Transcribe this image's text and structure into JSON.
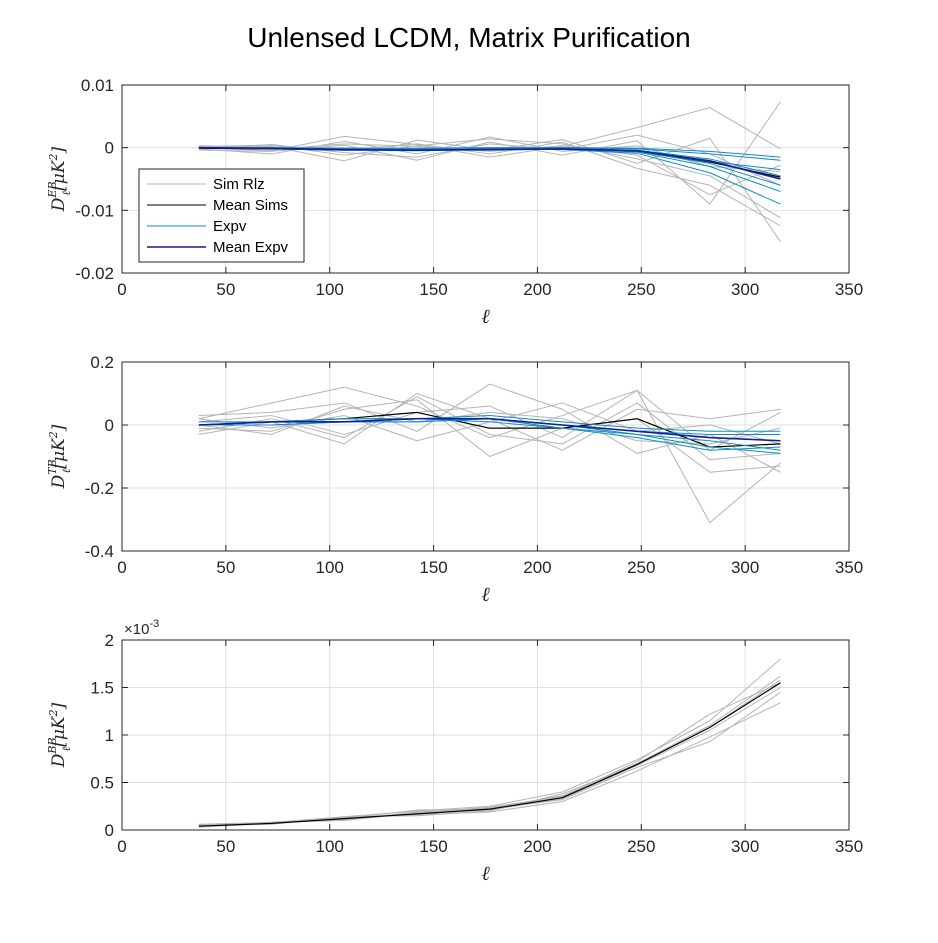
{
  "figure": {
    "title": "Unlensed LCDM, Matrix Purification"
  },
  "chart_data": [
    {
      "type": "line",
      "id": "eb",
      "ylabel": "D_ℓ^{EB}[μK²]",
      "ylabel_parts": {
        "base": "D",
        "sub": "ℓ",
        "sup": "EB",
        "tail": "[μK",
        "tail_sup": "2",
        "tail_end": "]"
      },
      "xlabel": "ℓ",
      "xlim": [
        0,
        350
      ],
      "ylim": [
        -0.02,
        0.01
      ],
      "xticks": [
        0,
        50,
        100,
        150,
        200,
        250,
        300,
        350
      ],
      "xtick_labels": [
        "0",
        "50",
        "100",
        "150",
        "200",
        "250",
        "300",
        "350"
      ],
      "yticks": [
        -0.02,
        -0.01,
        0,
        0.01
      ],
      "ytick_labels": [
        "-0.02",
        "-0.01",
        "0",
        "0.01"
      ],
      "grid": true,
      "legend": {
        "placement": "middle-left",
        "entries": [
          {
            "label": "Sim Rlz",
            "color": "#b4b4b4"
          },
          {
            "label": "Mean Sims",
            "color": "#000000"
          },
          {
            "label": "Expv",
            "color": "#0e8fbf"
          },
          {
            "label": "Mean Expv",
            "color": "#1a1aa0"
          }
        ]
      },
      "x": [
        37,
        72,
        107,
        142,
        177,
        212,
        248,
        283,
        317
      ],
      "series": [
        {
          "kind": "sim",
          "values": [
            0,
            -0.0005,
            0.0018,
            0.0005,
            -0.0015,
            0.0002,
            0.0032,
            0.0064,
            -0.0002
          ]
        },
        {
          "kind": "sim",
          "values": [
            0.0002,
            0.0004,
            -0.0012,
            0.0003,
            0.0014,
            0.0006,
            -0.0018,
            -0.0045,
            -0.0112
          ]
        },
        {
          "kind": "sim",
          "values": [
            -0.0004,
            -0.0006,
            0.0004,
            -0.002,
            0.0009,
            -0.0012,
            0.0011,
            -0.009,
            0.0073
          ]
        },
        {
          "kind": "sim",
          "values": [
            0.0001,
            0.0002,
            -0.0021,
            0.0012,
            -0.0004,
            0.0013,
            -0.0025,
            0.0015,
            -0.015
          ]
        },
        {
          "kind": "sim",
          "values": [
            -0.0002,
            -0.001,
            0.001,
            -0.001,
            0.0017,
            -0.0006,
            0.0003,
            -0.003,
            -0.0038
          ]
        },
        {
          "kind": "sim",
          "values": [
            0.0003,
            0.0001,
            -0.0004,
            0.0006,
            -0.001,
            0.0009,
            -0.0033,
            -0.006,
            -0.0125
          ]
        },
        {
          "kind": "sim",
          "values": [
            -0.0001,
            0.0005,
            -0.0008,
            -0.0015,
            0.0006,
            -0.0003,
            0.002,
            -0.001,
            -0.006
          ]
        },
        {
          "kind": "sim",
          "values": [
            0.0002,
            -0.0003,
            0.0006,
            0.0002,
            -0.0006,
            0.0003,
            -0.0012,
            -0.0075,
            -0.0028
          ]
        },
        {
          "kind": "mean_sims",
          "values": [
            -0.0001,
            -0.0002,
            -0.0004,
            -0.0003,
            -0.0002,
            0.0,
            -0.0005,
            -0.0023,
            -0.0047
          ]
        },
        {
          "kind": "expv",
          "values": [
            0.0,
            -0.0001,
            -0.0003,
            -0.0004,
            -0.0004,
            -0.0002,
            -0.0006,
            -0.0025,
            -0.006
          ]
        },
        {
          "kind": "expv",
          "values": [
            0.0,
            -0.0001,
            -0.0002,
            -0.0003,
            -0.0002,
            -0.0001,
            -0.0004,
            -0.0018,
            -0.0045
          ]
        },
        {
          "kind": "expv",
          "values": [
            0.0,
            -0.0002,
            -0.0004,
            -0.0005,
            -0.0003,
            -0.0003,
            -0.0009,
            -0.004,
            -0.009
          ]
        },
        {
          "kind": "expv",
          "values": [
            0.0,
            -0.0001,
            -0.0001,
            -0.0002,
            -0.0001,
            0.0,
            -0.0002,
            -0.001,
            -0.002
          ]
        },
        {
          "kind": "expv",
          "values": [
            0.0,
            -0.0001,
            -0.0003,
            -0.0004,
            -0.0003,
            -0.0002,
            -0.0007,
            -0.003,
            -0.007
          ]
        },
        {
          "kind": "expv",
          "values": [
            0.0,
            0.0,
            -0.0001,
            -0.0001,
            0.0,
            0.0,
            -0.0001,
            -0.0006,
            -0.0015
          ]
        },
        {
          "kind": "expv",
          "values": [
            0.0,
            -0.0001,
            -0.0002,
            -0.0003,
            -0.0002,
            -0.0001,
            -0.0005,
            -0.0022,
            -0.0035
          ]
        },
        {
          "kind": "mean_expv",
          "values": [
            0.0,
            -0.0001,
            -0.0003,
            -0.0004,
            -0.0003,
            -0.0002,
            -0.0005,
            -0.0021,
            -0.005
          ]
        }
      ]
    },
    {
      "type": "line",
      "id": "tb",
      "ylabel": "D_ℓ^{TB}[μK²]",
      "ylabel_parts": {
        "base": "D",
        "sub": "ℓ",
        "sup": "TB",
        "tail": "[μK",
        "tail_sup": "2",
        "tail_end": "]"
      },
      "xlabel": "ℓ",
      "xlim": [
        0,
        350
      ],
      "ylim": [
        -0.4,
        0.2
      ],
      "xticks": [
        0,
        50,
        100,
        150,
        200,
        250,
        300,
        350
      ],
      "xtick_labels": [
        "0",
        "50",
        "100",
        "150",
        "200",
        "250",
        "300",
        "350"
      ],
      "yticks": [
        -0.4,
        -0.2,
        0,
        0.2
      ],
      "ytick_labels": [
        "-0.4",
        "-0.2",
        "0",
        "0.2"
      ],
      "grid": true,
      "x": [
        37,
        72,
        107,
        142,
        177,
        212,
        248,
        283,
        317
      ],
      "series": [
        {
          "kind": "sim",
          "values": [
            0.02,
            0.07,
            0.12,
            0.06,
            -0.04,
            0.03,
            0.11,
            -0.31,
            -0.12
          ]
        },
        {
          "kind": "sim",
          "values": [
            -0.03,
            0.01,
            -0.06,
            0.1,
            0.02,
            -0.08,
            0.05,
            0.02,
            0.05
          ]
        },
        {
          "kind": "sim",
          "values": [
            0.03,
            0.04,
            0.07,
            -0.02,
            0.13,
            0.05,
            -0.09,
            -0.03,
            -0.15
          ]
        },
        {
          "kind": "sim",
          "values": [
            -0.01,
            -0.02,
            0.05,
            0.08,
            -0.1,
            -0.01,
            0.02,
            -0.15,
            -0.13
          ]
        },
        {
          "kind": "sim",
          "values": [
            0.01,
            0.03,
            -0.03,
            0.04,
            0.06,
            -0.04,
            0.11,
            -0.08,
            0.04
          ]
        },
        {
          "kind": "sim",
          "values": [
            0.02,
            -0.01,
            0.03,
            -0.05,
            0.01,
            0.07,
            -0.02,
            0.0,
            -0.06
          ]
        },
        {
          "kind": "sim",
          "values": [
            -0.02,
            0.02,
            -0.04,
            0.09,
            -0.03,
            -0.06,
            0.07,
            -0.11,
            -0.09
          ]
        },
        {
          "kind": "sim",
          "values": [
            0.0,
            -0.03,
            0.06,
            0.01,
            0.04,
            0.02,
            -0.05,
            -0.06,
            -0.01
          ]
        },
        {
          "kind": "mean_sims",
          "values": [
            0.0,
            0.01,
            0.02,
            0.04,
            -0.01,
            -0.01,
            0.02,
            -0.07,
            -0.06
          ]
        },
        {
          "kind": "expv",
          "values": [
            0.0,
            0.01,
            0.02,
            0.02,
            0.01,
            -0.01,
            -0.03,
            -0.05,
            -0.08
          ]
        },
        {
          "kind": "expv",
          "values": [
            0.0,
            0.0,
            0.01,
            0.01,
            0.02,
            0.0,
            -0.02,
            -0.03,
            -0.03
          ]
        },
        {
          "kind": "expv",
          "values": [
            0.01,
            0.01,
            0.01,
            0.02,
            0.02,
            0.0,
            -0.03,
            -0.07,
            -0.09
          ]
        },
        {
          "kind": "expv",
          "values": [
            0.0,
            0.01,
            0.02,
            0.02,
            0.03,
            0.01,
            -0.01,
            -0.02,
            -0.02
          ]
        },
        {
          "kind": "expv",
          "values": [
            0.0,
            0.0,
            0.01,
            0.01,
            0.02,
            -0.01,
            -0.04,
            -0.08,
            -0.07
          ]
        },
        {
          "kind": "expv",
          "values": [
            0.0,
            0.01,
            0.01,
            0.02,
            0.02,
            0.0,
            -0.02,
            -0.04,
            -0.05
          ]
        },
        {
          "kind": "mean_expv",
          "values": [
            0.0,
            0.01,
            0.01,
            0.02,
            0.02,
            0.0,
            -0.02,
            -0.04,
            -0.05
          ]
        }
      ]
    },
    {
      "type": "line",
      "id": "bb",
      "ylabel": "D_ℓ^{BB}[μK²]",
      "ylabel_parts": {
        "base": "D",
        "sub": "ℓ",
        "sup": "BB",
        "tail": "[μK",
        "tail_sup": "2",
        "tail_end": "]"
      },
      "xlabel": "ℓ",
      "exponent_label": "×10",
      "exponent_value": "-3",
      "xlim": [
        0,
        350
      ],
      "ylim": [
        0,
        2
      ],
      "xticks": [
        0,
        50,
        100,
        150,
        200,
        250,
        300,
        350
      ],
      "xtick_labels": [
        "0",
        "50",
        "100",
        "150",
        "200",
        "250",
        "300",
        "350"
      ],
      "yticks": [
        0,
        0.5,
        1,
        1.5,
        2
      ],
      "ytick_labels": [
        "0",
        "0.5",
        "1",
        "1.5",
        "2"
      ],
      "grid": true,
      "x": [
        37,
        72,
        107,
        142,
        177,
        212,
        248,
        283,
        317
      ],
      "series": [
        {
          "kind": "sim",
          "values": [
            0.05,
            0.08,
            0.14,
            0.2,
            0.25,
            0.4,
            0.74,
            1.15,
            1.8
          ]
        },
        {
          "kind": "sim",
          "values": [
            0.04,
            0.07,
            0.12,
            0.17,
            0.21,
            0.33,
            0.68,
            1.05,
            1.5
          ]
        },
        {
          "kind": "sim",
          "values": [
            0.06,
            0.08,
            0.11,
            0.19,
            0.23,
            0.36,
            0.7,
            1.1,
            1.62
          ]
        },
        {
          "kind": "sim",
          "values": [
            0.03,
            0.07,
            0.13,
            0.16,
            0.19,
            0.3,
            0.62,
            0.98,
            1.34
          ]
        },
        {
          "kind": "sim",
          "values": [
            0.05,
            0.08,
            0.1,
            0.18,
            0.24,
            0.35,
            0.72,
            1.22,
            1.55
          ]
        },
        {
          "kind": "sim",
          "values": [
            0.04,
            0.07,
            0.12,
            0.21,
            0.22,
            0.32,
            0.66,
            0.93,
            1.45
          ]
        },
        {
          "kind": "sim",
          "values": [
            0.05,
            0.06,
            0.14,
            0.15,
            0.2,
            0.38,
            0.69,
            1.08,
            1.58
          ]
        },
        {
          "kind": "mean_sims",
          "values": [
            0.04,
            0.07,
            0.12,
            0.17,
            0.22,
            0.34,
            0.69,
            1.08,
            1.55
          ]
        }
      ]
    }
  ]
}
